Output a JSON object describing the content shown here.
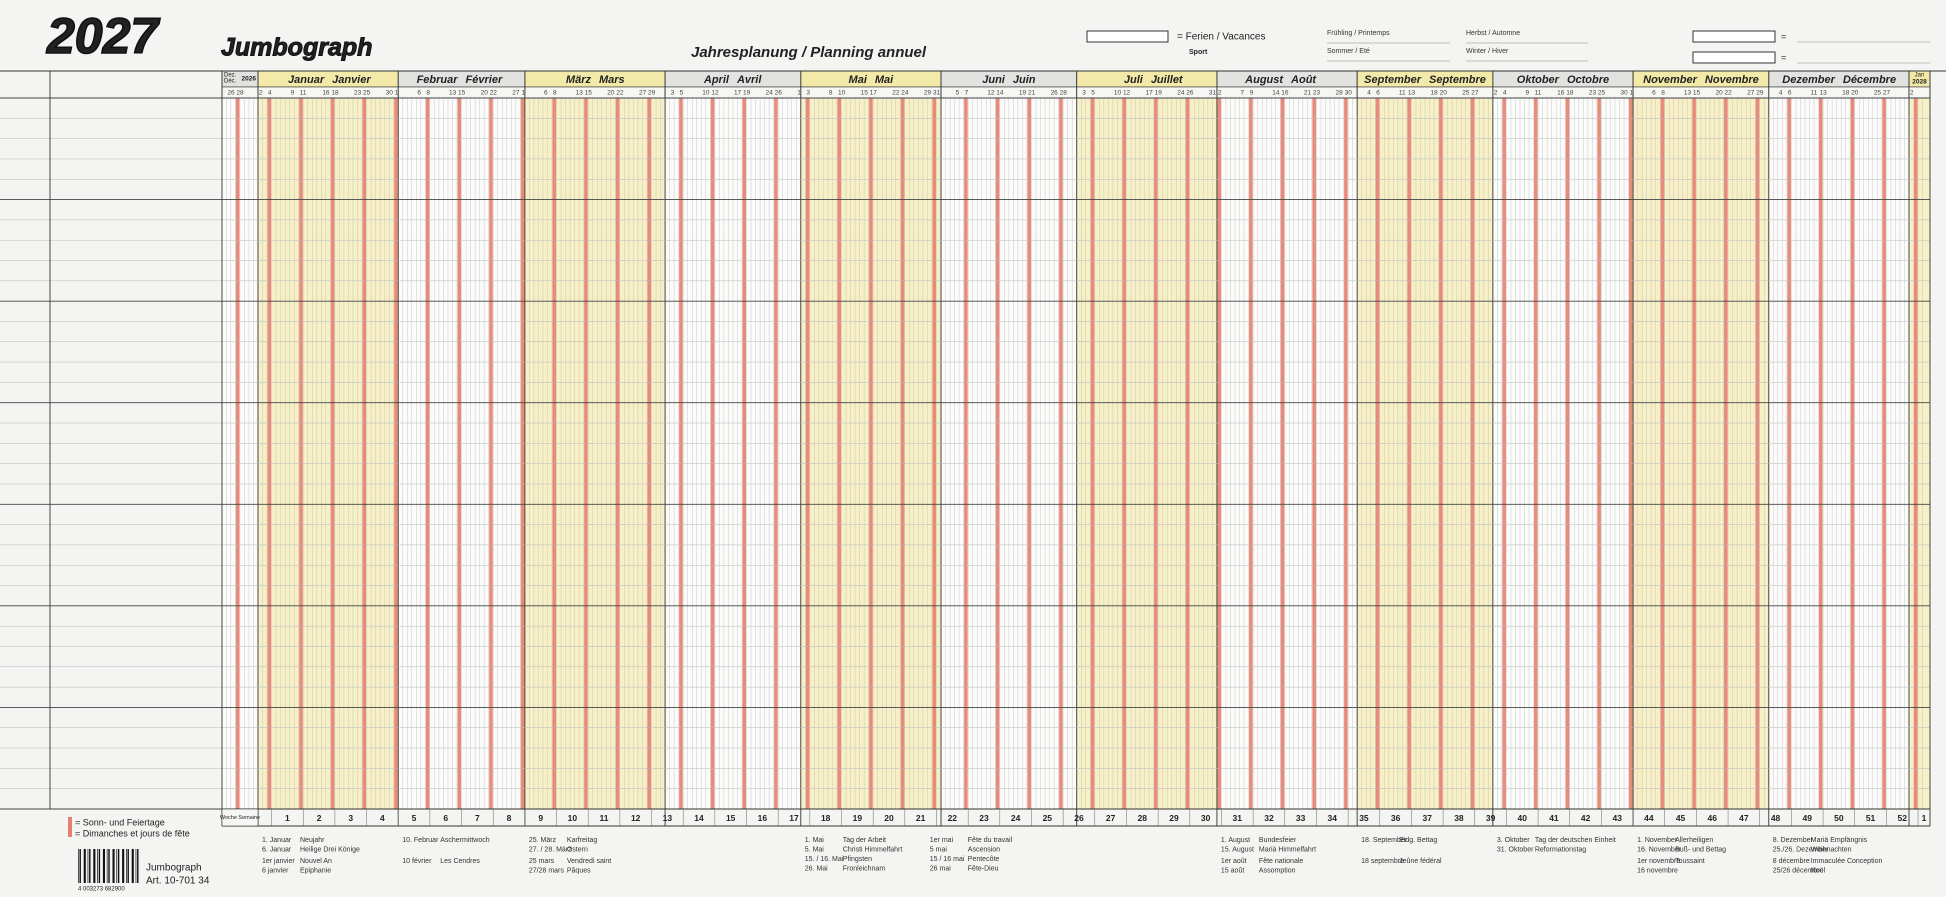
{
  "header": {
    "year": "2027",
    "brand": "Jumbograph",
    "title": "Jahresplanung / Planning annuel",
    "holiday_key": "= Ferien / Vacances",
    "sport": "Sport",
    "seasons": [
      "Frühling / Printemps",
      "Sommer / Eté",
      "Herbst / Automne",
      "Winter / Hiver"
    ],
    "equals": [
      "=",
      "="
    ]
  },
  "calendar": {
    "months": [
      {
        "de": "Dez.",
        "fr": "Déc.",
        "year": "2026",
        "days": [
          "26",
          "28"
        ]
      },
      {
        "de": "Januar",
        "fr": "Janvier",
        "days": [
          "2",
          "4",
          "9",
          "11",
          "16",
          "18",
          "23",
          "25",
          "30"
        ]
      },
      {
        "de": "Februar",
        "fr": "Février",
        "days": [
          "1",
          "6",
          "8",
          "13",
          "15",
          "20",
          "22",
          "27"
        ]
      },
      {
        "de": "März",
        "fr": "Mars",
        "days": [
          "1",
          "6",
          "8",
          "13",
          "15",
          "20",
          "22",
          "27",
          "29"
        ]
      },
      {
        "de": "April",
        "fr": "Avril",
        "days": [
          "3",
          "5",
          "10",
          "12",
          "17",
          "19",
          "24",
          "26"
        ]
      },
      {
        "de": "Mai",
        "fr": "Mai",
        "days": [
          "1",
          "3",
          "8",
          "10",
          "15",
          "17",
          "22",
          "24",
          "29",
          "31"
        ]
      },
      {
        "de": "Juni",
        "fr": "Juin",
        "days": [
          "5",
          "7",
          "12",
          "14",
          "19",
          "21",
          "26",
          "28"
        ]
      },
      {
        "de": "Juli",
        "fr": "Juillet",
        "days": [
          "3",
          "5",
          "10",
          "12",
          "17",
          "19",
          "24",
          "26",
          "31"
        ]
      },
      {
        "de": "August",
        "fr": "Août",
        "days": [
          "2",
          "7",
          "9",
          "14",
          "16",
          "21",
          "23",
          "28",
          "30"
        ]
      },
      {
        "de": "September",
        "fr": "Septembre",
        "days": [
          "4",
          "6",
          "11",
          "13",
          "18",
          "20",
          "25",
          "27"
        ]
      },
      {
        "de": "Oktober",
        "fr": "Octobre",
        "days": [
          "2",
          "4",
          "9",
          "11",
          "16",
          "18",
          "23",
          "25",
          "30"
        ]
      },
      {
        "de": "November",
        "fr": "Novembre",
        "days": [
          "1",
          "6",
          "8",
          "13",
          "15",
          "20",
          "22",
          "27",
          "29"
        ]
      },
      {
        "de": "Dezember",
        "fr": "Décembre",
        "days": [
          "4",
          "6",
          "11",
          "13",
          "18",
          "20",
          "25",
          "27"
        ]
      },
      {
        "de": "Jan",
        "year": "2028",
        "days": [
          "2"
        ]
      }
    ],
    "week_label": "Woche Semaine",
    "weeks": [
      "1",
      "2",
      "3",
      "4",
      "5",
      "6",
      "7",
      "8",
      "9",
      "10",
      "11",
      "12",
      "13",
      "14",
      "15",
      "16",
      "17",
      "18",
      "19",
      "20",
      "21",
      "22",
      "23",
      "24",
      "25",
      "26",
      "27",
      "28",
      "29",
      "30",
      "31",
      "32",
      "33",
      "34",
      "35",
      "36",
      "37",
      "38",
      "39",
      "40",
      "41",
      "42",
      "43",
      "44",
      "45",
      "46",
      "47",
      "48",
      "49",
      "50",
      "51",
      "52",
      "1"
    ]
  },
  "holidays": [
    {
      "de": [
        [
          "1. Januar",
          "Neujahr"
        ],
        [
          "6. Januar",
          "Heilige Drei Könige"
        ]
      ],
      "fr": [
        [
          "1er janvier",
          "Nouvel An"
        ],
        [
          "6 janvier",
          "Epiphanie"
        ]
      ]
    },
    {
      "de": [
        [
          "10. Februar",
          "Aschermittwoch"
        ]
      ],
      "fr": [
        [
          "10 février",
          "Les Cendres"
        ]
      ]
    },
    {
      "de": [
        [
          "25. März",
          "Karfreitag"
        ],
        [
          "27. / 28. März",
          "Ostern"
        ]
      ],
      "fr": [
        [
          "25 mars",
          "Vendredi saint"
        ],
        [
          "27/28 mars",
          "Pâques"
        ]
      ]
    },
    {
      "de": [
        [
          "1. Mai",
          "Tag der Arbeit"
        ],
        [
          "5. Mai",
          "Christi Himmelfahrt"
        ],
        [
          "15. / 16. Mai",
          "Pfingsten"
        ],
        [
          "26. Mai",
          "Fronleichnam"
        ]
      ],
      "fr": [
        [
          "1er mai",
          "Fête du travail"
        ],
        [
          "5 mai",
          "Ascension"
        ],
        [
          "15 / 16 mai",
          "Pentecôte"
        ],
        [
          "26 mai",
          "Fête-Dieu"
        ]
      ]
    },
    {
      "de": [
        [
          "1. August",
          "Bundesfeier"
        ],
        [
          "15. August",
          "Mariä Himmelfahrt"
        ]
      ],
      "fr": [
        [
          "1er août",
          "Fête nationale"
        ],
        [
          "15 août",
          "Assomption"
        ]
      ]
    },
    {
      "de": [
        [
          "18. September",
          "Eidg. Bettag"
        ]
      ],
      "fr": [
        [
          "18 septembre",
          "Jeûne fédéral"
        ]
      ]
    },
    {
      "de": [
        [
          "3. Oktober",
          "Tag der deutschen Einheit"
        ],
        [
          "31. Oktober",
          "Reformationstag"
        ]
      ],
      "fr": []
    },
    {
      "de": [
        [
          "1. November",
          "Allerheiligen"
        ],
        [
          "16. November",
          "Buß- und Bettag"
        ]
      ],
      "fr": [
        [
          "1er novembre",
          "Toussaint"
        ],
        [
          "16 novembre",
          ""
        ]
      ]
    },
    {
      "de": [
        [
          "8. Dezember",
          "Mariä Empfängnis"
        ],
        [
          "25./26. Dezember",
          "Weihnachten"
        ]
      ],
      "fr": [
        [
          "8 décembre",
          "Immaculée Conception"
        ],
        [
          "25/26 décembre",
          "Noël"
        ]
      ]
    }
  ],
  "footer": {
    "legend": [
      "= Sonn- und Feiertage",
      "= Dimanches et jours de fête"
    ],
    "barcode": "4 003273 682900",
    "brand": "Jumbograph",
    "article": "Art. 10-701 34"
  }
}
